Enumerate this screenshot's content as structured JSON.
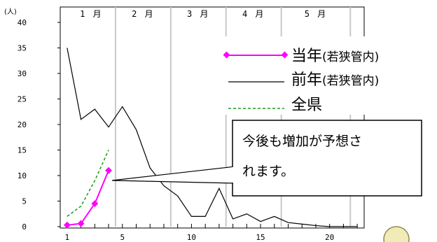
{
  "chart_data": {
    "type": "line",
    "ylabel": "(人)",
    "ylim": [
      0,
      40
    ],
    "yticks": [
      "0",
      "5",
      "10",
      "15",
      "20",
      "25",
      "30",
      "35",
      "40"
    ],
    "xlim": [
      0.5,
      22.5
    ],
    "xticks": [
      1,
      5,
      10,
      15,
      20
    ],
    "xtick_labels": [
      "1",
      "5",
      "10",
      "15",
      "20"
    ],
    "x_minor_ticks": [
      1,
      2,
      3,
      4,
      5,
      6,
      7,
      8,
      9,
      10,
      11,
      12,
      13,
      14,
      15,
      16,
      17,
      18,
      19,
      20,
      21,
      22
    ],
    "months": [
      {
        "label": "1 月",
        "from": 1,
        "to": 4.5
      },
      {
        "label": "2 月",
        "from": 4.5,
        "to": 8.5
      },
      {
        "label": "3 月",
        "from": 8.5,
        "to": 12.5
      },
      {
        "label": "4 月",
        "from": 12.5,
        "to": 16.5
      },
      {
        "label": "5 月",
        "from": 16.5,
        "to": 21.5
      }
    ],
    "month_boundaries": [
      4.5,
      8.5,
      12.5,
      16.5,
      21.5
    ],
    "series": [
      {
        "name": "当年",
        "name_suffix": "(若狭管内)",
        "style": "magenta-diamond",
        "color": "#ff00ff",
        "x": [
          1,
          2,
          3,
          4
        ],
        "y": [
          0.3,
          0.6,
          4.5,
          11
        ]
      },
      {
        "name": "前年",
        "name_suffix": "(若狭管内)",
        "style": "black-solid",
        "color": "#000000",
        "x": [
          1,
          2,
          3,
          4,
          5,
          6,
          7,
          8,
          9,
          10,
          11,
          12,
          13,
          14,
          15,
          16,
          17,
          18,
          19,
          20,
          21,
          22
        ],
        "y": [
          35,
          21,
          23,
          19.5,
          23.5,
          19,
          11.5,
          8,
          6,
          2,
          2,
          7.5,
          1.5,
          2.5,
          1,
          2,
          0.8,
          0.5,
          0.2,
          0,
          0,
          0
        ]
      },
      {
        "name": "全県",
        "name_suffix": "",
        "style": "green-dashed",
        "color": "#1a9a1a",
        "x": [
          1,
          2,
          3,
          4
        ],
        "y": [
          2,
          4,
          9,
          15
        ]
      }
    ],
    "annotation": {
      "text_line1": "今後も増加が予想さ",
      "text_line2": "れます。",
      "points_to_x": 4
    },
    "grid": {
      "vertical": true,
      "horizontal": false
    }
  }
}
